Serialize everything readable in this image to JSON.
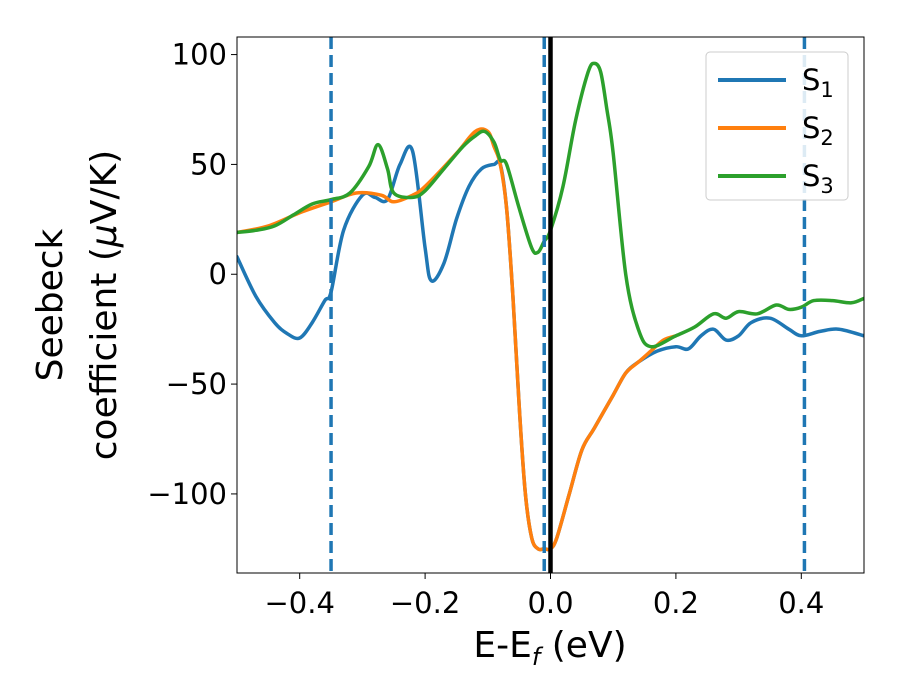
{
  "chart_data": {
    "type": "line",
    "xlabel": "E-E",
    "xlabel_sub": "f",
    "xlabel_unit": " (eV)",
    "ylabel_line1": "Seebeck",
    "ylabel_line2": "coefficient  (",
    "ylabel_mu": "μ",
    "ylabel_line2_end": "V/K)",
    "xlim": [
      -0.5,
      0.5
    ],
    "ylim": [
      -136,
      108
    ],
    "x_ticks": [
      -0.4,
      -0.2,
      0.0,
      0.2,
      0.4
    ],
    "x_tick_labels": [
      "−0.4",
      "−0.2",
      "0.0",
      "0.2",
      "0.4"
    ],
    "y_ticks": [
      100,
      50,
      0,
      -50,
      -100
    ],
    "y_tick_labels": [
      "100",
      "50",
      "0",
      "−50",
      "−100"
    ],
    "grid": false,
    "legend_position": "top-right",
    "vertical_lines": [
      {
        "x": 0.0,
        "style": "solid",
        "color": "#000000"
      },
      {
        "x": -0.35,
        "style": "dashed",
        "color": "#1f77b4"
      },
      {
        "x": -0.01,
        "style": "dashed",
        "color": "#1f77b4"
      },
      {
        "x": 0.405,
        "style": "dashed",
        "color": "#1f77b4"
      }
    ],
    "series": [
      {
        "name": "S",
        "name_sub": "1",
        "color": "#1f77b4",
        "x": [
          -0.5,
          -0.47,
          -0.44,
          -0.42,
          -0.4,
          -0.38,
          -0.36,
          -0.35,
          -0.33,
          -0.3,
          -0.28,
          -0.26,
          -0.24,
          -0.22,
          -0.2,
          -0.19,
          -0.17,
          -0.15,
          -0.13,
          -0.11,
          -0.09,
          -0.08,
          -0.07,
          -0.06,
          -0.05,
          -0.04,
          -0.03,
          -0.02,
          -0.01,
          0.0,
          0.01,
          0.03,
          0.05,
          0.07,
          0.1,
          0.12,
          0.14,
          0.17,
          0.2,
          0.22,
          0.24,
          0.26,
          0.28,
          0.3,
          0.32,
          0.35,
          0.38,
          0.4,
          0.43,
          0.46,
          0.5
        ],
        "y": [
          8,
          -10,
          -22,
          -27,
          -29,
          -22,
          -12,
          -8,
          20,
          36,
          35,
          34,
          50,
          56,
          12,
          -3,
          5,
          25,
          40,
          48,
          50,
          50,
          30,
          -10,
          -60,
          -100,
          -120,
          -125,
          -125,
          -125,
          -120,
          -100,
          -80,
          -70,
          -55,
          -45,
          -40,
          -35,
          -33,
          -34,
          -28,
          -25,
          -30,
          -28,
          -22,
          -20,
          -25,
          -28,
          -26,
          -25,
          -28
        ]
      },
      {
        "name": "S",
        "name_sub": "2",
        "color": "#ff7f0e",
        "x": [
          -0.5,
          -0.45,
          -0.4,
          -0.35,
          -0.31,
          -0.27,
          -0.25,
          -0.22,
          -0.2,
          -0.15,
          -0.12,
          -0.1,
          -0.09,
          -0.08,
          -0.07,
          -0.06,
          -0.05,
          -0.04,
          -0.03,
          -0.02,
          -0.01,
          0.0,
          0.01,
          0.03,
          0.05,
          0.07,
          0.1,
          0.12,
          0.14,
          0.16,
          0.18,
          0.2
        ],
        "y": [
          19,
          22,
          28,
          33,
          37,
          36,
          33,
          36,
          40,
          55,
          65,
          65,
          58,
          50,
          30,
          -10,
          -60,
          -100,
          -120,
          -125,
          -125,
          -125,
          -120,
          -100,
          -80,
          -70,
          -55,
          -45,
          -40,
          -35,
          -30,
          -28
        ]
      },
      {
        "name": "S",
        "name_sub": "3",
        "color": "#2ca02c",
        "x": [
          -0.5,
          -0.47,
          -0.44,
          -0.41,
          -0.38,
          -0.35,
          -0.32,
          -0.29,
          -0.275,
          -0.26,
          -0.25,
          -0.22,
          -0.2,
          -0.17,
          -0.14,
          -0.12,
          -0.105,
          -0.09,
          -0.08,
          -0.07,
          -0.05,
          -0.03,
          -0.02,
          -0.01,
          0.0,
          0.02,
          0.04,
          0.06,
          0.07,
          0.08,
          0.09,
          0.1,
          0.12,
          0.14,
          0.16,
          0.2,
          0.23,
          0.26,
          0.28,
          0.3,
          0.33,
          0.36,
          0.38,
          0.4,
          0.42,
          0.45,
          0.48,
          0.5
        ],
        "y": [
          19,
          20,
          22,
          27,
          32,
          34,
          37,
          49,
          59,
          48,
          37,
          35,
          38,
          48,
          58,
          63,
          65,
          60,
          52,
          50,
          30,
          12,
          10,
          15,
          20,
          40,
          70,
          92,
          96,
          92,
          75,
          55,
          0,
          -25,
          -33,
          -28,
          -24,
          -18,
          -20,
          -17,
          -18,
          -14,
          -16,
          -15,
          -12,
          -12,
          -13,
          -11
        ]
      }
    ]
  }
}
